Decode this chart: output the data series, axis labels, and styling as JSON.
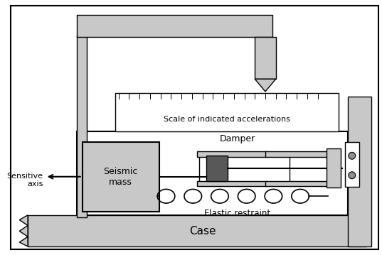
{
  "bg_color": "#ffffff",
  "gray_light": "#c8c8c8",
  "gray_medium": "#909090",
  "gray_dark": "#585858",
  "black": "#000000",
  "white": "#ffffff",
  "label_seismic": "Seismic\nmass",
  "label_sensitive": "Sensitive\naxis",
  "label_damper": "Damper",
  "label_elastic": "Elastic restraint",
  "label_scale": "Scale of indicated accelerations",
  "label_case": "Case"
}
